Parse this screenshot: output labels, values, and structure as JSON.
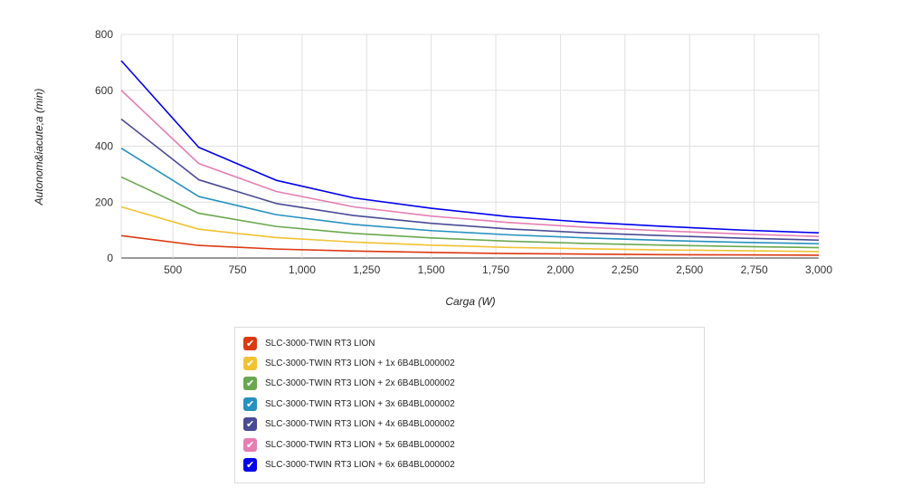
{
  "chart_data": {
    "type": "line",
    "xlabel": "Carga (W)",
    "ylabel": "Autonom&iacute;a (min)",
    "xlim": [
      300,
      3000
    ],
    "ylim": [
      0,
      800
    ],
    "x_ticks": [
      "500",
      "750",
      "1,000",
      "1,250",
      "1,500",
      "1,750",
      "2,000",
      "2,250",
      "2,500",
      "2,750",
      "3,000"
    ],
    "y_ticks": [
      "0",
      "200",
      "400",
      "600",
      "800"
    ],
    "grid": true,
    "legend_position": "bottom",
    "x": [
      300,
      600,
      900,
      1200,
      1500,
      1800,
      2100,
      2400,
      2700,
      3000
    ],
    "series": [
      {
        "name": "SLC-3000-TWIN RT3 LION",
        "color": "#dc3912",
        "values": [
          80,
          45,
          32,
          25,
          20,
          16,
          14,
          12,
          11,
          10
        ]
      },
      {
        "name": "SLC-3000-TWIN RT3 LION + 1x 6B4BL000002",
        "color": "#f1c232",
        "values": [
          183,
          103,
          73,
          57,
          46,
          38,
          33,
          29,
          26,
          23
        ]
      },
      {
        "name": "SLC-3000-TWIN RT3 LION + 2x 6B4BL000002",
        "color": "#6aa84f",
        "values": [
          290,
          160,
          113,
          88,
          72,
          60,
          52,
          46,
          41,
          37
        ]
      },
      {
        "name": "SLC-3000-TWIN RT3 LION + 3x 6B4BL000002",
        "color": "#2691c0",
        "values": [
          393,
          220,
          155,
          120,
          98,
          83,
          72,
          63,
          56,
          51
        ]
      },
      {
        "name": "SLC-3000-TWIN RT3 LION + 4x 6B4BL000002",
        "color": "#4a4a96",
        "values": [
          497,
          280,
          195,
          152,
          124,
          104,
          90,
          80,
          71,
          64
        ]
      },
      {
        "name": "SLC-3000-TWIN RT3 LION + 5x 6B4BL000002",
        "color": "#e67eb3",
        "values": [
          600,
          338,
          238,
          183,
          150,
          127,
          110,
          97,
          86,
          77
        ]
      },
      {
        "name": "SLC-3000-TWIN RT3 LION + 6x 6B4BL000002",
        "color": "#0000ee",
        "values": [
          706,
          396,
          278,
          215,
          178,
          148,
          128,
          113,
          100,
          90
        ]
      }
    ]
  }
}
